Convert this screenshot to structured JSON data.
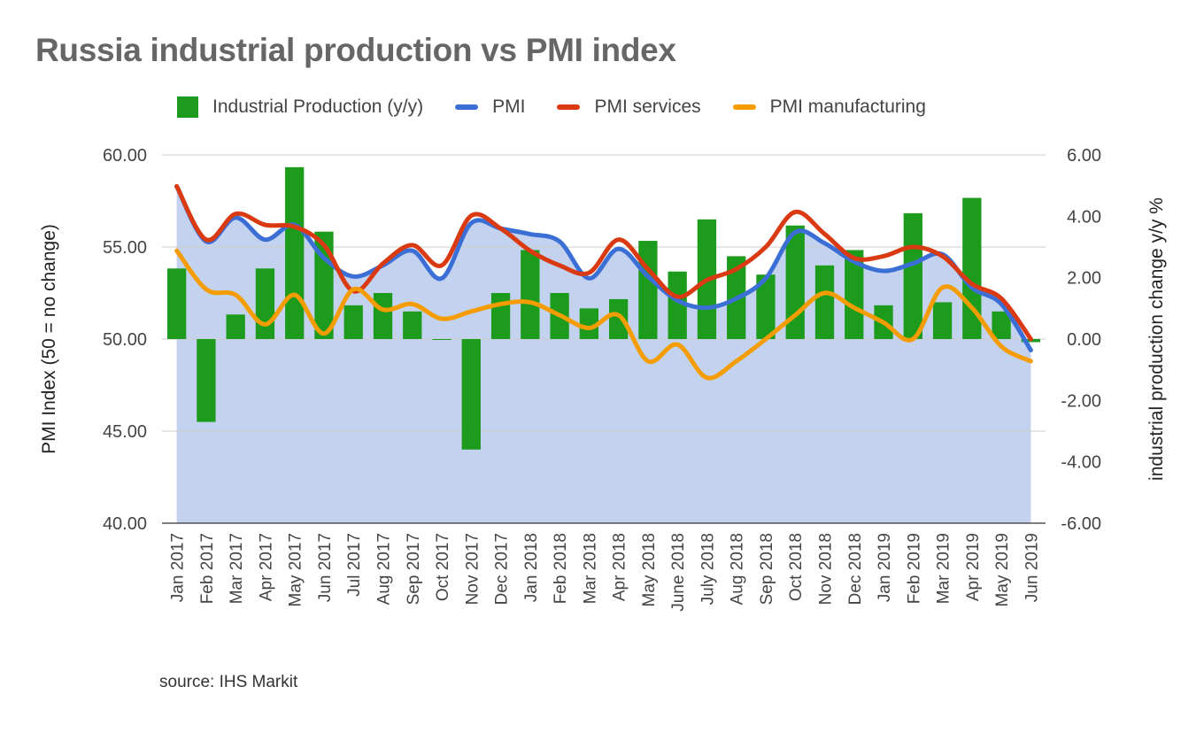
{
  "title": "Russia industrial production vs PMI index",
  "source": "source: IHS Markit",
  "legend": [
    {
      "label": "Industrial Production (y/y)",
      "kind": "box",
      "color": "#1c9b1c"
    },
    {
      "label": "PMI",
      "kind": "line",
      "color": "#3b6fd6"
    },
    {
      "label": "PMI services",
      "kind": "line",
      "color": "#d93a12"
    },
    {
      "label": "PMI manufacturing",
      "kind": "line",
      "color": "#f59c00"
    }
  ],
  "chart_data": {
    "type": "bar",
    "title": "Russia industrial production vs PMI index",
    "ylabel": "PMI Index (50 = no change)",
    "y2label": "industrial production change y/y %",
    "ylim": [
      40,
      60
    ],
    "y2lim": [
      -6,
      6
    ],
    "yticks": [
      "60.00",
      "55.00",
      "50.00",
      "45.00",
      "40.00"
    ],
    "y2ticks": [
      "6.00",
      "4.00",
      "2.00",
      "0.00",
      "-2.00",
      "-4.00",
      "-6.00"
    ],
    "categories": [
      "Jan 2017",
      "Feb 2017",
      "Mar 2017",
      "Apr 2017",
      "May 2017",
      "Jun 2017",
      "Jul 2017",
      "Aug 2017",
      "Sep 2017",
      "Oct 2017",
      "Nov 2017",
      "Dec 2017",
      "Jan 2018",
      "Feb 2018",
      "Mar 2018",
      "Apr 2018",
      "May 2018",
      "June 2018",
      "July 2018",
      "Aug 2018",
      "Sep 2018",
      "Oct 2018",
      "Nov 2018",
      "Dec 2018",
      "Jan 2019",
      "Feb 2019",
      "Mar 2019",
      "Apr 2019",
      "May 2019",
      "Jun 2019"
    ],
    "series": [
      {
        "name": "Industrial Production (y/y)",
        "type": "bar",
        "axis": "right",
        "color": "#1c9b1c",
        "values": [
          2.3,
          -2.7,
          0.8,
          2.3,
          5.6,
          3.5,
          1.1,
          1.5,
          0.9,
          0.0,
          -3.6,
          1.5,
          2.9,
          1.5,
          1.0,
          1.3,
          3.2,
          2.2,
          3.9,
          2.7,
          2.1,
          3.7,
          2.4,
          2.9,
          1.1,
          4.1,
          1.2,
          4.6,
          0.9,
          -0.1
        ]
      },
      {
        "name": "PMI",
        "type": "area",
        "axis": "left",
        "color": "#3b6fd6",
        "fill": "#c3d2ee",
        "values": [
          58.3,
          55.3,
          56.6,
          55.4,
          56.2,
          54.4,
          53.4,
          54.0,
          54.8,
          53.3,
          56.3,
          56.0,
          55.7,
          55.3,
          53.3,
          54.9,
          53.4,
          52.1,
          51.7,
          52.2,
          53.3,
          55.8,
          55.2,
          54.2,
          53.7,
          54.1,
          54.6,
          52.8,
          51.9,
          49.4
        ]
      },
      {
        "name": "PMI services",
        "type": "line",
        "axis": "left",
        "color": "#d93a12",
        "values": [
          58.3,
          55.4,
          56.8,
          56.2,
          56.1,
          55.1,
          52.6,
          54.1,
          55.1,
          54.0,
          56.7,
          56.0,
          54.8,
          54.0,
          53.6,
          55.4,
          53.8,
          52.3,
          53.2,
          53.8,
          55.0,
          56.9,
          55.7,
          54.4,
          54.5,
          55.0,
          54.5,
          53.0,
          52.2,
          50.0
        ]
      },
      {
        "name": "PMI manufacturing",
        "type": "line",
        "axis": "left",
        "color": "#f59c00",
        "values": [
          54.8,
          52.7,
          52.4,
          50.8,
          52.4,
          50.3,
          52.7,
          51.6,
          51.9,
          51.1,
          51.5,
          51.9,
          52.0,
          51.3,
          50.6,
          51.3,
          48.8,
          49.7,
          47.9,
          48.8,
          50.0,
          51.3,
          52.5,
          51.7,
          50.9,
          50.0,
          52.8,
          51.7,
          49.6,
          48.8
        ]
      }
    ]
  }
}
